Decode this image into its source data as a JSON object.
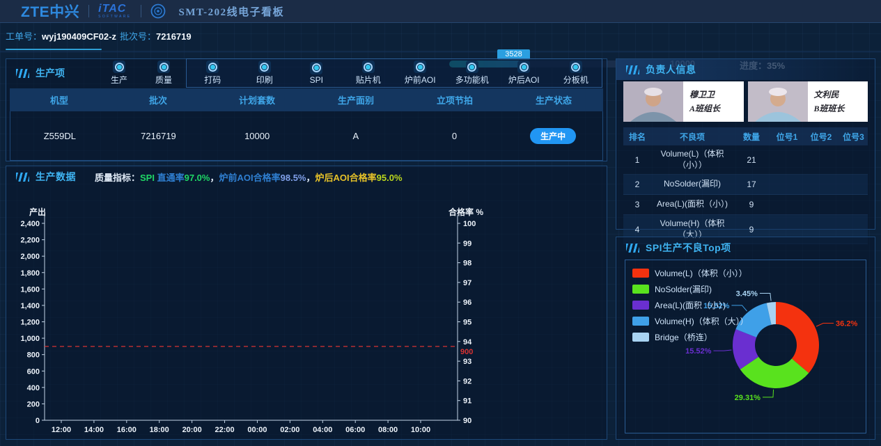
{
  "header": {
    "brand_primary": "ZTE中兴",
    "brand_secondary": "iTAC",
    "brand_secondary_sub": "SOFTWARE",
    "board_title": "SMT-202线电子看板"
  },
  "info_bar": {
    "work_order_label": "工单号：",
    "work_order_value": "wyj190409CF02-z",
    "batch_label": "批次号：",
    "batch_value": "7216719",
    "progress": {
      "current": "3528",
      "total": "10000",
      "percent": 35,
      "progress_label": "进度：35%"
    }
  },
  "production_items": {
    "panel_title": "生产项",
    "standalone_items": [
      "生产",
      "质量"
    ],
    "grouped_items": [
      "打码",
      "印刷",
      "SPI",
      "贴片机",
      "炉前AOI",
      "多功能机",
      "炉后AOI",
      "分板机"
    ]
  },
  "order_table": {
    "headers": [
      "机型",
      "批次",
      "计划套数",
      "生产面别",
      "立项节拍",
      "生产状态"
    ],
    "rows": [
      {
        "cells": [
          "Z559DL",
          "7216719",
          "10000",
          "A",
          "0"
        ],
        "status": "生产中",
        "status_color": "#2196f3"
      }
    ]
  },
  "production_data": {
    "panel_title": "生产数据",
    "quality_label": "质量指标：",
    "quality_segments": [
      {
        "text": "SPI ",
        "color": "#1fd766"
      },
      {
        "text": "直通率",
        "color": "#2f7fd1"
      },
      {
        "text": "97.0%",
        "color": "#1fd766"
      },
      {
        "text": "，",
        "color": "#dfe9f5"
      },
      {
        "text": "炉前AOI合格率",
        "color": "#2f7fd1"
      },
      {
        "text": "98.5%",
        "color": "#7f9fe8"
      },
      {
        "text": "，",
        "color": "#dfe9f5"
      },
      {
        "text": "炉后AOI合格率",
        "color": "#e6c229"
      },
      {
        "text": "95.0%",
        "color": "#bcd81e"
      }
    ]
  },
  "owner_panel": {
    "panel_title": "负责人信息",
    "people": [
      {
        "name": "穆卫卫",
        "role": "A班组长"
      },
      {
        "name": "文利民",
        "role": "B班班长"
      }
    ]
  },
  "defect_table": {
    "headers": [
      "排名",
      "不良项",
      "数量",
      "位号1",
      "位号2",
      "位号3"
    ],
    "rows": [
      {
        "rank": "1",
        "defect": "Volume(L)（体积（小））",
        "qty": "21",
        "pos1": "",
        "pos2": "",
        "pos3": ""
      },
      {
        "rank": "2",
        "defect": "NoSolder(漏印)",
        "qty": "17",
        "pos1": "",
        "pos2": "",
        "pos3": ""
      },
      {
        "rank": "3",
        "defect": "Area(L)(面积（小）)",
        "qty": "9",
        "pos1": "",
        "pos2": "",
        "pos3": ""
      },
      {
        "rank": "4",
        "defect": "Volume(H)（体积（大））",
        "qty": "9",
        "pos1": "",
        "pos2": "",
        "pos3": ""
      }
    ]
  },
  "spi_panel": {
    "panel_title": "SPI生产不良Top项"
  },
  "chart_data": [
    {
      "type": "line",
      "left_axis": {
        "label": "产出",
        "min": 0,
        "max": 2400,
        "step": 200,
        "ticks": [
          "2,400",
          "2,200",
          "2,000",
          "1,800",
          "1,600",
          "1,400",
          "1,200",
          "1,000",
          "800",
          "600",
          "400",
          "200",
          "0"
        ]
      },
      "right_axis": {
        "label": "合格率 %",
        "min": 90,
        "max": 100,
        "step": 1,
        "ticks": [
          "100",
          "99",
          "98",
          "97",
          "96",
          "95",
          "94",
          "93",
          "92",
          "91",
          "90"
        ]
      },
      "x_ticks": [
        "12:00",
        "14:00",
        "16:00",
        "18:00",
        "20:00",
        "22:00",
        "00:00",
        "02:00",
        "04:00",
        "06:00",
        "08:00",
        "10:00"
      ],
      "series": [],
      "reference_line": {
        "axis": "left",
        "value": 900,
        "label": "900",
        "color": "#d83232"
      },
      "grid": false
    },
    {
      "type": "pie",
      "donut": true,
      "labels": [
        "Volume(L)（体积（小））",
        "NoSolder(漏印)",
        "Area(L)(面积（小）)",
        "Volume(H)（体积（大））",
        "Bridge（桥连）"
      ],
      "values": [
        36.2,
        29.31,
        15.52,
        15.52,
        3.45
      ],
      "percent_labels": [
        "36.2%",
        "29.31%",
        "15.52%",
        "15.52%",
        "3.45%"
      ],
      "colors": [
        "#f4320f",
        "#59e21e",
        "#6a2fd0",
        "#3fa0e8",
        "#a8d3f2"
      ],
      "legend_position": "top-left"
    }
  ]
}
